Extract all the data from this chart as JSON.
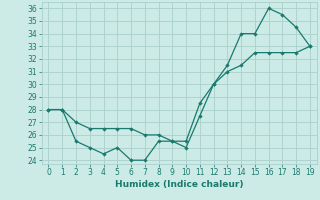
{
  "line1_x": [
    0,
    1,
    2,
    3,
    4,
    5,
    6,
    7,
    8,
    9,
    10,
    11,
    12,
    13,
    14,
    15,
    16,
    17,
    18,
    19
  ],
  "line1_y": [
    28,
    28,
    25.5,
    25,
    24.5,
    25,
    24,
    24,
    25.5,
    25.5,
    25,
    27.5,
    30,
    31.5,
    34,
    34,
    36,
    35.5,
    34.5,
    33
  ],
  "line2_x": [
    0,
    1,
    2,
    3,
    4,
    5,
    6,
    7,
    8,
    9,
    10,
    11,
    12,
    13,
    14,
    15,
    16,
    17,
    18,
    19
  ],
  "line2_y": [
    28,
    28,
    27,
    26.5,
    26.5,
    26.5,
    26.5,
    26,
    26,
    25.5,
    25.5,
    28.5,
    30,
    31,
    31.5,
    32.5,
    32.5,
    32.5,
    32.5,
    33
  ],
  "line_color": "#1a7a6e",
  "background_color": "#cceae6",
  "grid_color": "#aacfcb",
  "xlabel": "Humidex (Indice chaleur)",
  "ylim_min": 24,
  "ylim_max": 36.5,
  "xlim_min": -0.5,
  "xlim_max": 19.5,
  "yticks": [
    24,
    25,
    26,
    27,
    28,
    29,
    30,
    31,
    32,
    33,
    34,
    35,
    36
  ],
  "xticks": [
    0,
    1,
    2,
    3,
    4,
    5,
    6,
    7,
    8,
    9,
    10,
    11,
    12,
    13,
    14,
    15,
    16,
    17,
    18,
    19
  ],
  "tick_fontsize": 5.5,
  "xlabel_fontsize": 6.5
}
